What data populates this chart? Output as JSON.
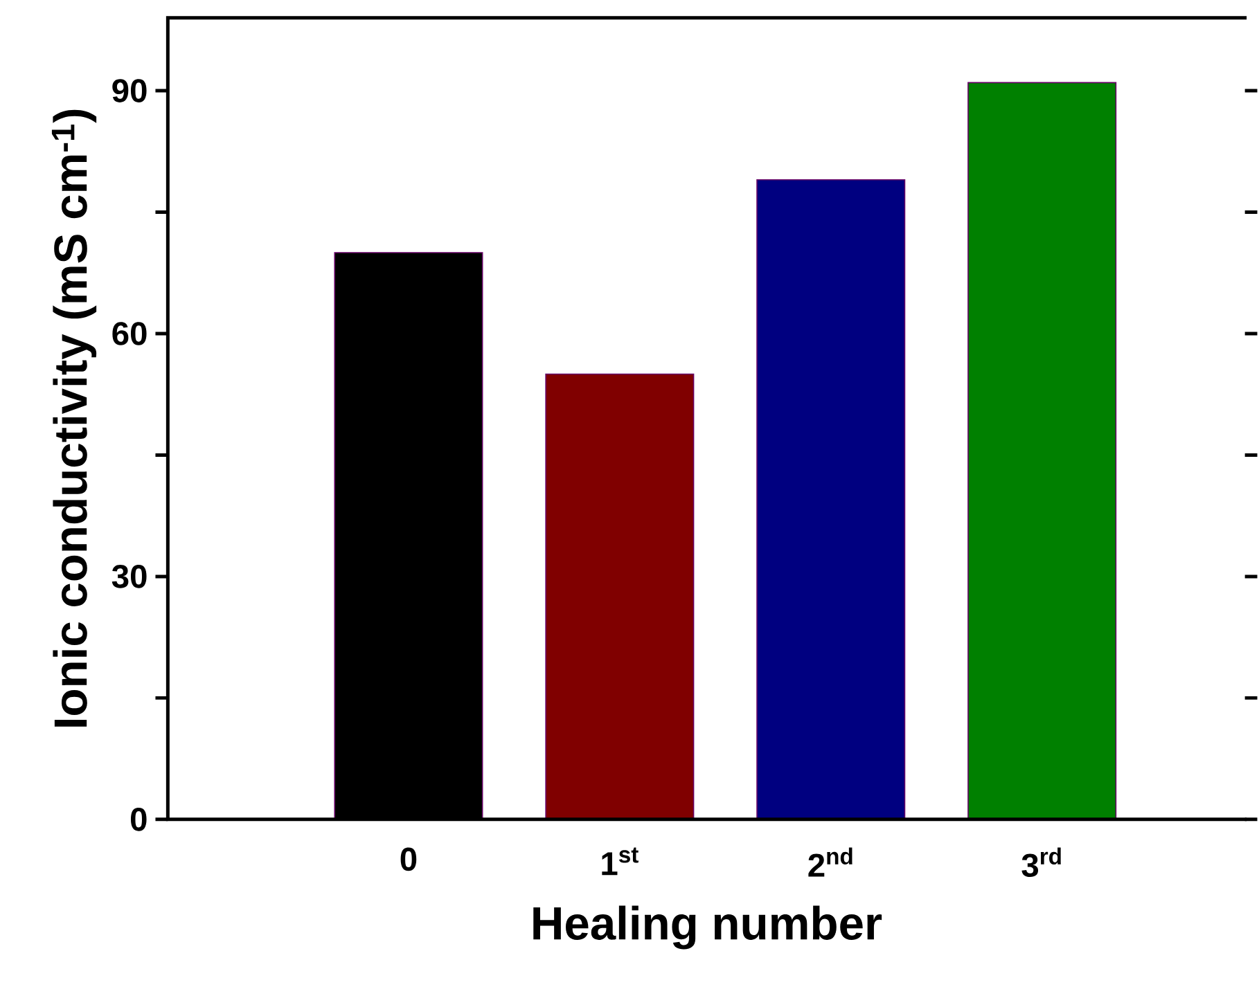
{
  "chart_data": {
    "type": "bar",
    "xlabel": "Healing number",
    "ylabel": "Ionic conductivity (mS cm$^{-1}$)",
    "categories": [
      "0",
      "1$^{st}$",
      "2$^{nd}$",
      "3$^{rd}$"
    ],
    "values": [
      70,
      55,
      79,
      91
    ],
    "colors": [
      "#000000",
      "#800000",
      "#000080",
      "#008000"
    ],
    "ylim": [
      0,
      99
    ],
    "yticks": [
      0,
      {
        "value": 15,
        "label": null
      },
      30,
      {
        "value": 45,
        "label": null
      },
      60,
      {
        "value": 75,
        "label": null
      },
      90
    ]
  }
}
